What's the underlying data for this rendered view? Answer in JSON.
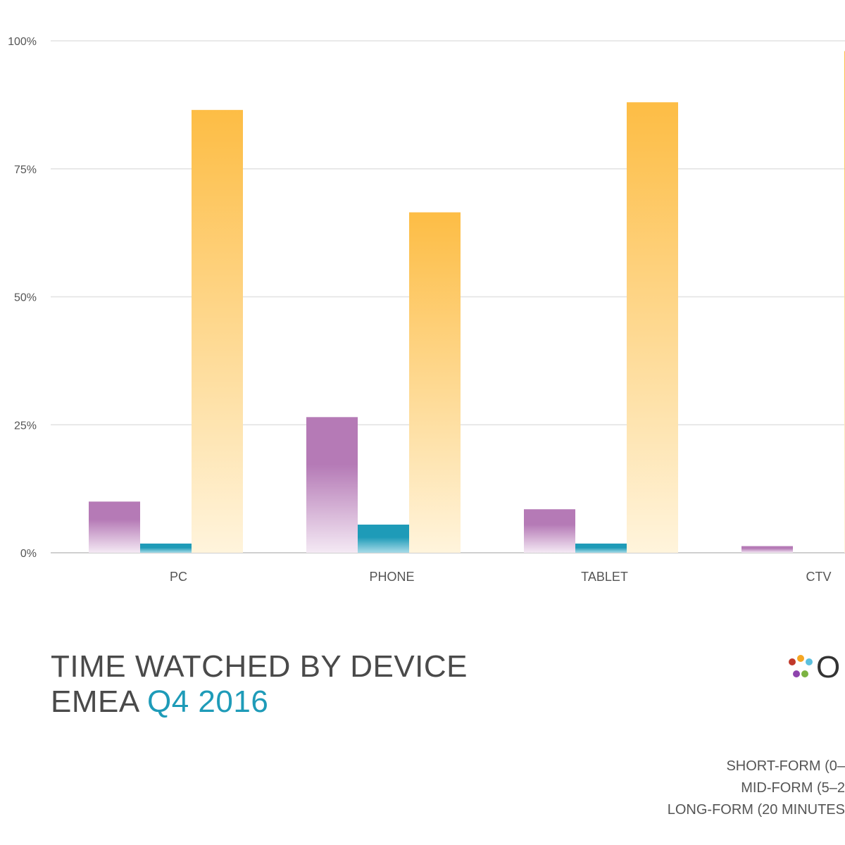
{
  "title": {
    "line1": "TIME WATCHED BY DEVICE",
    "line2_prefix": "EMEA ",
    "line2_accent": "Q4 2016"
  },
  "logo": {
    "text": "O",
    "dot_colors": [
      "#c0392b",
      "#f5a623",
      "#5bc0de",
      "#8e44ad",
      "#7cb342",
      "#8e44ad"
    ]
  },
  "legend": {
    "items": [
      "SHORT-FORM (0–",
      "MID-FORM (5–2",
      "LONG-FORM (20 MINUTES"
    ]
  },
  "colors": {
    "short_form": "#b57ab6",
    "mid_form": "#1e9bb8",
    "long_form": "#fdbd45",
    "grid": "#e2e2e2",
    "axis_text": "#555555"
  },
  "chart_data": {
    "type": "bar",
    "categories": [
      "PC",
      "PHONE",
      "TABLET",
      "CTV"
    ],
    "series": [
      {
        "values": [
          10,
          26.5,
          8.5,
          1.3
        ]
      },
      {
        "values": [
          1.8,
          5.5,
          1.8,
          0
        ]
      },
      {
        "values": [
          86.5,
          66.5,
          88,
          98
        ]
      }
    ],
    "y_ticks": [
      "0%",
      "25%",
      "50%",
      "75%",
      "100%"
    ],
    "ylim": [
      0,
      100
    ],
    "grid": true
  }
}
